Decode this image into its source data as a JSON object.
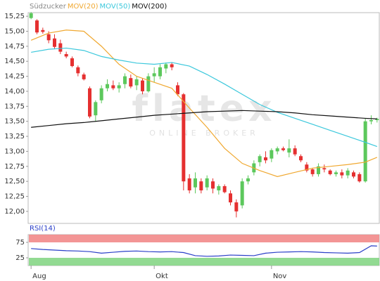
{
  "chart_data": [
    {
      "type": "candlestick",
      "watermark": {
        "brand": "flatex",
        "tagline": "ONLINE BROKER"
      },
      "xlim": [
        -0.5,
        59.5
      ],
      "ylim": [
        11.8,
        15.31
      ],
      "yticks": [
        {
          "value": 12,
          "label": "12,00"
        },
        {
          "value": 12.25,
          "label": "12,25"
        },
        {
          "value": 12.5,
          "label": "12,50"
        },
        {
          "value": 12.75,
          "label": "12,75"
        },
        {
          "value": 13,
          "label": "13,00"
        },
        {
          "value": 13.25,
          "label": "13,25"
        },
        {
          "value": 13.5,
          "label": "13,50"
        },
        {
          "value": 13.75,
          "label": "13,75"
        },
        {
          "value": 14,
          "label": "14,00"
        },
        {
          "value": 14.25,
          "label": "14,25"
        },
        {
          "value": 14.5,
          "label": "14,50"
        },
        {
          "value": 14.75,
          "label": "14,75"
        },
        {
          "value": 15,
          "label": "15,00"
        },
        {
          "value": 15.25,
          "label": "15,25"
        }
      ],
      "series": [
        {
          "name": "Südzucker",
          "color": "#888888",
          "up_color": "#5cc85c",
          "down_color": "#e53030",
          "x": [
            0,
            1,
            2,
            3,
            4,
            5,
            6,
            7,
            8,
            9,
            10,
            11,
            12,
            13,
            14,
            15,
            16,
            17,
            18,
            19,
            20,
            21,
            22,
            23,
            24,
            25,
            26,
            27,
            28,
            29,
            30,
            31,
            32,
            33,
            34,
            35,
            36,
            37,
            38,
            39,
            40,
            41,
            42,
            43,
            44,
            45,
            46,
            47,
            48,
            49,
            50,
            51,
            52,
            53,
            54,
            55,
            56,
            57,
            58,
            59
          ],
          "open": [
            15.22,
            15.18,
            15.02,
            14.95,
            14.88,
            14.8,
            14.62,
            14.55,
            14.4,
            14.28,
            14.05,
            13.6,
            13.85,
            14.05,
            14.1,
            14.05,
            14.12,
            14.22,
            14.1,
            14.18,
            14.0,
            14.25,
            14.25,
            14.38,
            14.45,
            14.1,
            13.95,
            12.55,
            12.4,
            12.5,
            12.4,
            12.5,
            12.35,
            12.42,
            12.3,
            12.15,
            12.1,
            12.5,
            12.65,
            12.82,
            12.9,
            12.88,
            13.0,
            13.05,
            12.98,
            13.05,
            12.92,
            12.78,
            12.7,
            12.62,
            12.72,
            12.68,
            12.62,
            12.65,
            12.6,
            12.65,
            12.62,
            12.5,
            13.5,
            13.52
          ],
          "high": [
            15.32,
            15.2,
            15.06,
            15.0,
            14.95,
            14.86,
            14.66,
            14.58,
            14.43,
            14.31,
            14.08,
            13.85,
            14.1,
            14.2,
            14.18,
            14.15,
            14.3,
            14.28,
            14.25,
            14.22,
            14.3,
            14.4,
            14.45,
            14.48,
            14.48,
            14.15,
            13.97,
            12.62,
            12.65,
            12.55,
            12.6,
            12.55,
            12.45,
            12.45,
            12.35,
            12.2,
            12.55,
            12.6,
            12.85,
            12.95,
            13.0,
            13.05,
            13.08,
            13.08,
            13.2,
            13.1,
            12.95,
            12.82,
            12.72,
            12.8,
            12.78,
            12.7,
            12.68,
            12.7,
            12.72,
            12.68,
            12.65,
            13.55,
            13.6,
            13.56
          ],
          "low": [
            15.2,
            14.95,
            14.96,
            14.8,
            14.7,
            14.62,
            14.55,
            14.4,
            14.25,
            14.18,
            13.55,
            13.5,
            13.8,
            14.0,
            14.02,
            13.98,
            14.05,
            14.05,
            14.02,
            13.95,
            13.98,
            14.15,
            14.2,
            14.3,
            14.35,
            13.92,
            12.35,
            12.3,
            12.3,
            12.3,
            12.35,
            12.3,
            12.28,
            12.3,
            12.1,
            11.9,
            12.05,
            12.45,
            12.6,
            12.75,
            12.8,
            12.82,
            12.95,
            13.0,
            12.9,
            12.92,
            12.82,
            12.65,
            12.58,
            12.58,
            12.65,
            12.6,
            12.58,
            12.55,
            12.55,
            12.55,
            12.48,
            12.48,
            13.45,
            13.48
          ],
          "close": [
            15.3,
            14.98,
            14.99,
            14.85,
            14.74,
            14.66,
            14.58,
            14.42,
            14.3,
            14.2,
            13.58,
            13.82,
            14.05,
            14.12,
            14.05,
            14.1,
            14.25,
            14.08,
            14.2,
            14.0,
            14.25,
            14.3,
            14.4,
            14.45,
            14.4,
            13.95,
            12.5,
            12.35,
            12.55,
            12.35,
            12.55,
            12.38,
            12.42,
            12.32,
            12.15,
            12.0,
            12.5,
            12.55,
            12.8,
            12.92,
            12.85,
            13.02,
            13.05,
            13.02,
            13.05,
            12.95,
            12.85,
            12.68,
            12.62,
            12.75,
            12.7,
            12.62,
            12.65,
            12.6,
            12.68,
            12.58,
            12.5,
            13.5,
            13.52,
            13.54
          ]
        },
        {
          "name": "MOV(20)",
          "color": "#f0a830",
          "x": [
            0,
            3,
            6,
            9,
            12,
            15,
            18,
            21,
            24,
            27,
            30,
            33,
            36,
            39,
            42,
            45,
            48,
            51,
            54,
            57,
            59
          ],
          "values": [
            14.85,
            14.97,
            15.02,
            15.0,
            14.75,
            14.45,
            14.25,
            14.15,
            14.05,
            13.72,
            13.4,
            13.05,
            12.8,
            12.68,
            12.58,
            12.65,
            12.72,
            12.75,
            12.78,
            12.82,
            12.9
          ]
        },
        {
          "name": "MOV(50)",
          "color": "#3cc8dc",
          "x": [
            0,
            3,
            6,
            9,
            12,
            15,
            18,
            21,
            24,
            27,
            30,
            33,
            36,
            39,
            42,
            45,
            48,
            51,
            54,
            57,
            59
          ],
          "values": [
            14.65,
            14.7,
            14.72,
            14.68,
            14.58,
            14.52,
            14.47,
            14.45,
            14.48,
            14.42,
            14.28,
            14.12,
            13.95,
            13.78,
            13.65,
            13.55,
            13.45,
            13.35,
            13.25,
            13.15,
            13.08
          ]
        },
        {
          "name": "MOV(200)",
          "color": "#111111",
          "x": [
            0,
            3,
            6,
            9,
            12,
            15,
            18,
            21,
            24,
            27,
            30,
            33,
            36,
            39,
            42,
            45,
            48,
            51,
            54,
            57,
            59
          ],
          "values": [
            13.4,
            13.43,
            13.46,
            13.48,
            13.51,
            13.54,
            13.57,
            13.6,
            13.62,
            13.64,
            13.66,
            13.67,
            13.68,
            13.67,
            13.66,
            13.64,
            13.61,
            13.59,
            13.57,
            13.55,
            13.54
          ]
        }
      ]
    },
    {
      "type": "line",
      "xlim": [
        -0.5,
        59.5
      ],
      "xticks": [
        {
          "value": 0,
          "label": "Aug"
        },
        {
          "value": 21,
          "label": "Okt"
        },
        {
          "value": 41,
          "label": "Nov"
        }
      ],
      "ylim": [
        0,
        100
      ],
      "yticks": [
        25,
        75
      ],
      "bands": [
        {
          "from": 75,
          "to": 100,
          "color": "#f28a8a"
        },
        {
          "from": 0,
          "to": 25,
          "color": "#86d686"
        }
      ],
      "series": [
        {
          "name": "RSI(14)",
          "color": "#2a3fc8",
          "x": [
            0,
            2,
            4,
            6,
            8,
            10,
            12,
            14,
            16,
            18,
            20,
            22,
            24,
            26,
            28,
            30,
            32,
            34,
            36,
            38,
            40,
            42,
            44,
            46,
            48,
            50,
            52,
            54,
            56,
            58,
            59
          ],
          "values": [
            55,
            52,
            50,
            48,
            47,
            45,
            40,
            43,
            46,
            47,
            45,
            44,
            45,
            42,
            32,
            30,
            31,
            34,
            33,
            32,
            40,
            43,
            44,
            45,
            44,
            42,
            41,
            40,
            42,
            64,
            63
          ]
        }
      ]
    }
  ]
}
